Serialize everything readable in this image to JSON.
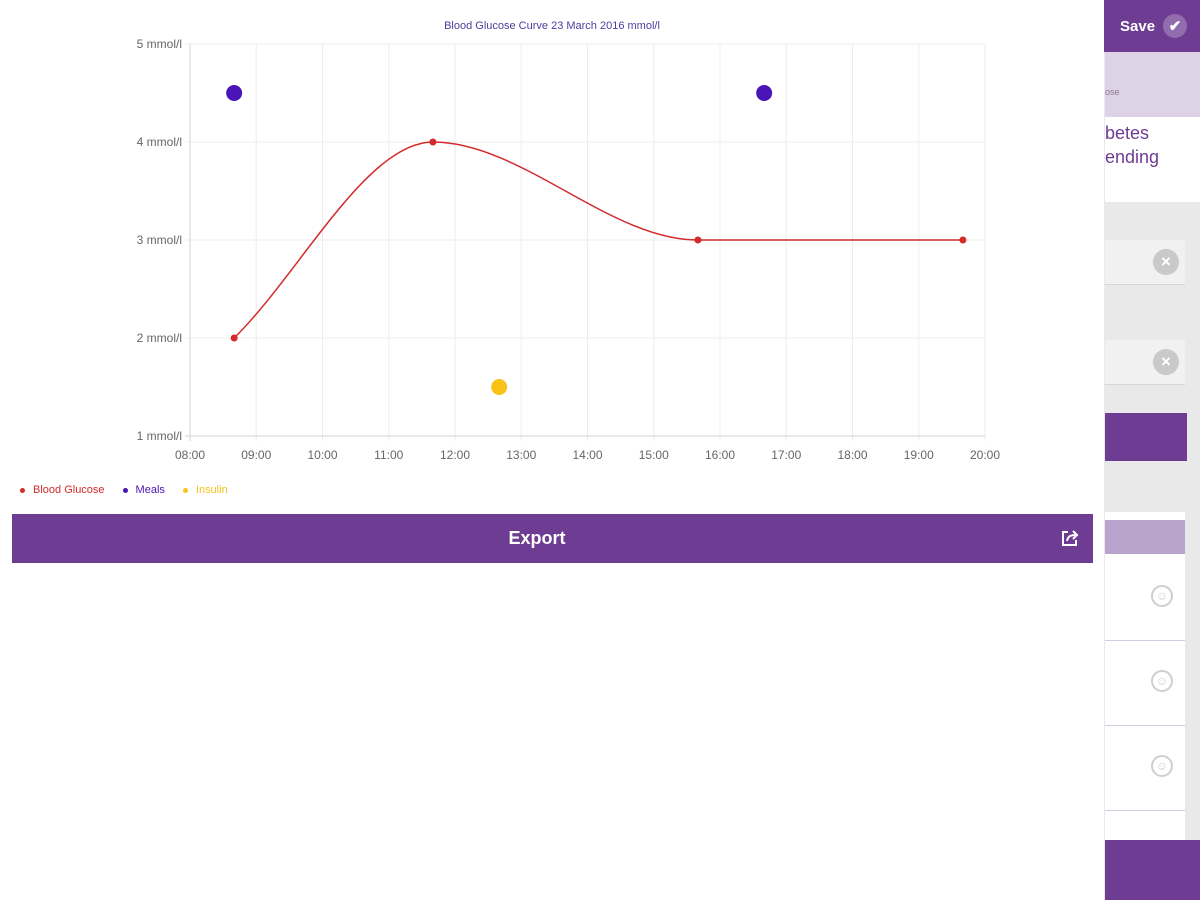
{
  "background_app": {
    "save_label": "Save",
    "subheader_text": "ose",
    "partial_text": "betes\nending"
  },
  "colors": {
    "accent": "#6e3c93",
    "glucose": "#d42a2a",
    "meals": "#4a14b6",
    "insulin": "#f7c316"
  },
  "icons": {
    "save": "check-icon",
    "clear": "clear-circle-x-icon",
    "item": "smiley-icon",
    "export": "share-icon"
  },
  "export_label": "Export",
  "chart_data": {
    "type": "line",
    "title": "Blood Glucose Curve 23 March 2016 mmol/l",
    "x_ticks": [
      "08:00",
      "09:00",
      "10:00",
      "11:00",
      "12:00",
      "13:00",
      "14:00",
      "15:00",
      "16:00",
      "17:00",
      "18:00",
      "19:00",
      "20:00"
    ],
    "y_ticks": [
      "1 mmol/l",
      "2 mmol/l",
      "3 mmol/l",
      "4 mmol/l",
      "5 mmol/l"
    ],
    "xlim": [
      "08:00",
      "20:00"
    ],
    "ylim": [
      1,
      5
    ],
    "grid": true,
    "legend_position": "bottom-left",
    "series": [
      {
        "name": "Blood Glucose",
        "style": "line",
        "color": "#d42a2a",
        "points": [
          {
            "x": "08:40",
            "y": 2
          },
          {
            "x": "11:40",
            "y": 4
          },
          {
            "x": "15:40",
            "y": 3
          },
          {
            "x": "19:40",
            "y": 3
          }
        ]
      },
      {
        "name": "Meals",
        "style": "scatter",
        "color": "#4a14b6",
        "points": [
          {
            "x": "08:40",
            "y": 4.5
          },
          {
            "x": "16:40",
            "y": 4.5
          }
        ]
      },
      {
        "name": "Insulin",
        "style": "scatter",
        "color": "#f7c316",
        "points": [
          {
            "x": "12:40",
            "y": 1.5
          }
        ]
      }
    ]
  }
}
